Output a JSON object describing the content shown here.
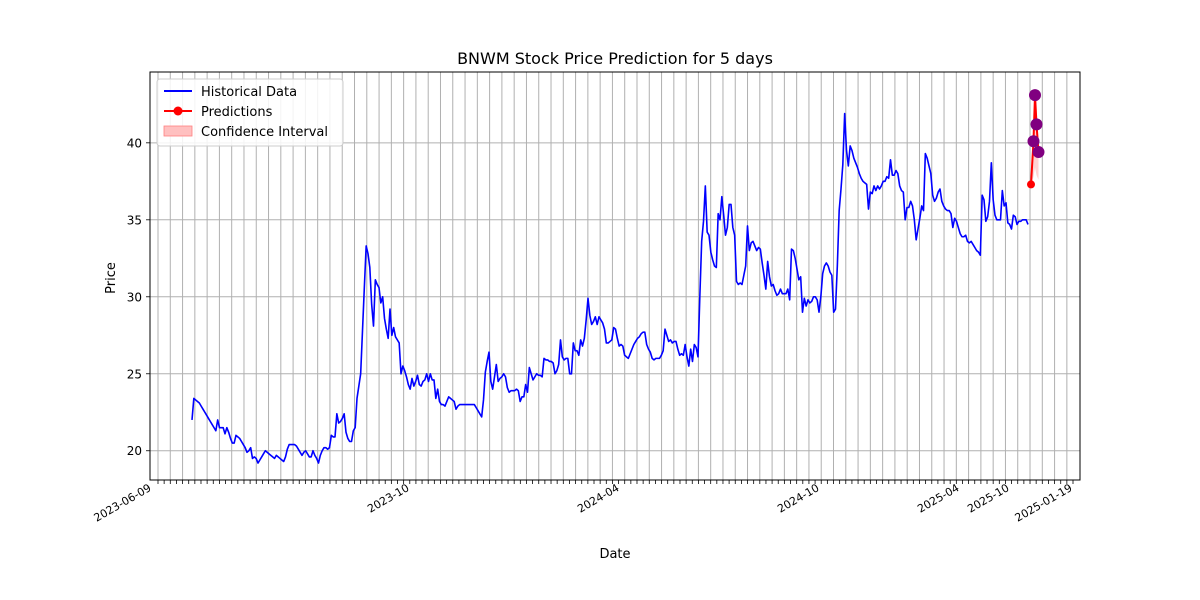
{
  "chart_data": {
    "type": "line",
    "title": "BNWM Stock Price Prediction for 5 days",
    "xlabel": "Date",
    "ylabel": "Price",
    "ylim": [
      18.1,
      44.6
    ],
    "yticks": [
      20,
      25,
      30,
      35,
      40
    ],
    "grid": true,
    "legend_position": "upper-left",
    "legend": [
      "Historical Data",
      "Predictions",
      "Confidence Interval"
    ],
    "colors": {
      "historical": "#0000ff",
      "prediction_line": "#ff0000",
      "prediction_points": "#800080",
      "first_prediction_point": "#ff0000",
      "confidence_fill": "#ffc0c0",
      "grid": "#b0b0b0"
    },
    "x_tick_labels": [
      "2023-06-09",
      "2023-10",
      "2024-04",
      "2024-10",
      "2025-04",
      "2025-10",
      "2025-01-19"
    ],
    "series": [
      {
        "name": "Historical Data",
        "values": [
          22,
          23.4,
          23.3,
          23.2,
          23.1,
          22.9,
          22.7,
          22.5,
          22.3,
          22.1,
          21.9,
          21.7,
          21.5,
          21.3,
          22,
          21.5,
          21.5,
          21.5,
          21.1,
          21.5,
          21.2,
          20.8,
          20.5,
          20.5,
          21,
          20.9,
          20.8,
          20.6,
          20.4,
          20.2,
          19.9,
          20,
          20.2,
          19.5,
          19.6,
          19.5,
          19.2,
          19.4,
          19.6,
          19.8,
          20,
          19.9,
          19.8,
          19.7,
          19.6,
          19.5,
          19.7,
          19.6,
          19.5,
          19.4,
          19.3,
          19.6,
          20.1,
          20.4,
          20.4,
          20.4,
          20.4,
          20.3,
          20.1,
          19.9,
          19.7,
          19.9,
          20,
          19.8,
          19.6,
          19.6,
          20,
          19.7,
          19.5,
          19.2,
          19.7,
          20,
          20.2,
          20.2,
          20.1,
          20.2,
          21,
          20.9,
          20.9,
          22.4,
          21.8,
          21.9,
          22.1,
          22.4,
          21.2,
          20.8,
          20.6,
          20.6,
          21.3,
          21.5,
          23.4,
          24.2,
          25,
          27.8,
          30.6,
          33.3,
          32.8,
          31.9,
          29.5,
          28.1,
          31.1,
          30.8,
          30.6,
          29.6,
          30,
          28.6,
          27.9,
          27.3,
          29.2,
          27.5,
          28,
          27.4,
          27.2,
          27,
          25,
          25.5,
          25.2,
          24.8,
          24.3,
          24,
          24.7,
          24.2,
          24.5,
          24.9,
          24.3,
          24.2,
          24.5,
          24.6,
          25,
          24.5,
          25,
          24.6,
          24.6,
          23.4,
          24,
          23.2,
          23,
          23,
          22.9,
          23.2,
          23.5,
          23.4,
          23.3,
          23.2,
          22.7,
          22.9,
          23,
          23,
          23,
          23,
          23,
          23,
          23,
          23,
          23,
          22.8,
          22.6,
          22.4,
          22.2,
          23.3,
          25.1,
          25.8,
          26.4,
          24.5,
          24,
          24.8,
          25.6,
          24.5,
          24.7,
          24.8,
          25,
          24.8,
          24.1,
          23.8,
          23.9,
          23.9,
          23.9,
          24,
          23.9,
          23.2,
          23.5,
          23.5,
          24.3,
          23.8,
          25.4,
          25,
          24.6,
          24.8,
          25,
          24.9,
          24.9,
          24.8,
          26,
          25.9,
          25.9,
          25.8,
          25.8,
          25.7,
          25,
          25.2,
          25.6,
          27.2,
          26.1,
          25.9,
          26,
          26,
          25,
          25,
          27,
          26.5,
          26.5,
          26.2,
          27.2,
          26.8,
          27.3,
          28.5,
          29.9,
          28.8,
          28.2,
          28.4,
          28.7,
          28.2,
          28.7,
          28.5,
          28.3,
          27.9,
          27,
          27,
          27.1,
          27.2,
          28,
          27.9,
          27.3,
          26.8,
          26.9,
          26.8,
          26.2,
          26.1,
          26,
          26.3,
          26.6,
          26.9,
          27.1,
          27.3,
          27.4,
          27.6,
          27.7,
          27.7,
          26.9,
          26.6,
          26.4,
          26,
          25.9,
          26,
          26,
          26,
          26.2,
          26.5,
          27.9,
          27.5,
          27.1,
          27.2,
          27,
          27.1,
          27.1,
          26.6,
          26.2,
          26.3,
          26.2,
          26.9,
          26.1,
          25.5,
          26.6,
          25.8,
          26.9,
          26.7,
          26.1,
          30,
          33.6,
          34.9,
          37.2,
          34.2,
          34,
          32.9,
          32.4,
          32,
          31.9,
          35.4,
          35,
          36.5,
          35.3,
          34,
          34.5,
          36,
          36,
          34.5,
          34,
          31,
          30.8,
          30.9,
          30.8,
          31.4,
          32,
          34.6,
          33,
          33.5,
          33.6,
          33.3,
          33,
          33.2,
          33.1,
          32.2,
          31.4,
          30.5,
          32.3,
          31.3,
          30.7,
          30.8,
          30.4,
          30.1,
          30.2,
          30.5,
          30.2,
          30.2,
          30.2,
          30.5,
          29.8,
          33.1,
          33,
          32.5,
          31.8,
          31.1,
          31.3,
          29,
          29.9,
          29.4,
          29.8,
          29.6,
          29.7,
          30,
          30,
          29.8,
          29,
          30,
          31.5,
          32,
          32.2,
          32,
          31.6,
          31.4,
          29,
          29.2,
          32,
          35.6,
          37,
          38.6,
          41.9,
          39.5,
          38.5,
          39.8,
          39.5,
          39,
          38.7,
          38.4,
          38,
          37.7,
          37.5,
          37.4,
          37.3,
          35.7,
          36.8,
          36.7,
          37.2,
          36.9,
          37.2,
          37,
          37.2,
          37.5,
          37.5,
          37.8,
          37.7,
          38.9,
          37.9,
          37.9,
          38.2,
          38,
          37.2,
          36.9,
          36.8,
          35,
          35.8,
          35.8,
          36.2,
          35.9,
          35,
          33.7,
          34.4,
          35.1,
          35.9,
          35.6,
          39.3,
          39,
          38.5,
          38,
          36.6,
          36.2,
          36.4,
          36.8,
          37,
          36.2,
          35.9,
          35.7,
          35.6,
          35.6,
          35.4,
          34.5,
          35.1,
          34.9,
          34.5,
          34.1,
          33.9,
          33.9,
          34,
          33.6,
          33.5,
          33.6,
          33.4,
          33.2,
          33,
          32.9,
          32.7,
          36.6,
          36.3,
          34.9,
          35.2,
          36.2,
          38.7,
          36.3,
          35.3,
          35,
          35,
          35,
          36.9,
          35.9,
          36.1,
          34.8,
          34.7,
          34.4,
          35.3,
          35.2,
          34.7,
          34.9,
          34.9,
          35,
          35,
          35,
          34.7
        ]
      },
      {
        "name": "Predictions",
        "values": [
          37.3,
          40.1,
          43.1,
          41.2,
          39.4
        ]
      }
    ],
    "confidence_interval": {
      "lower": [
        37.3,
        37.8,
        38.4,
        37.9,
        37.6
      ],
      "upper": [
        37.3,
        42.0,
        43.5,
        42.3,
        40.2
      ]
    }
  }
}
